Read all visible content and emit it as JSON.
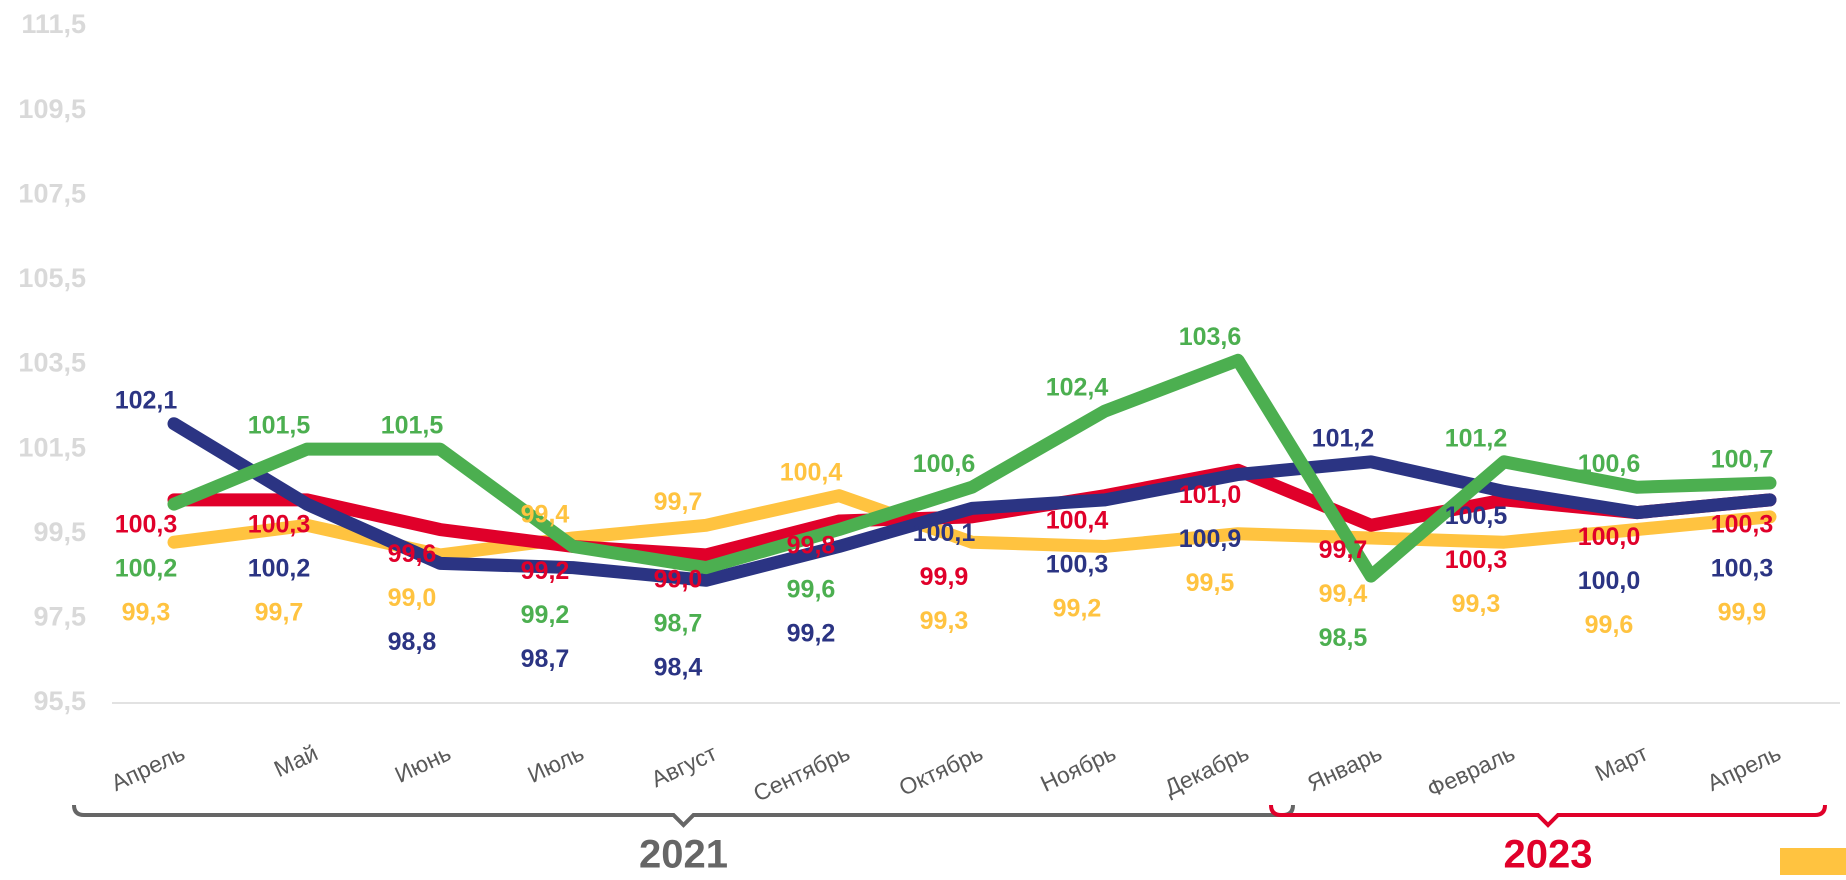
{
  "chart_data": {
    "type": "line",
    "categories": [
      "Апрель",
      "Май",
      "Июнь",
      "Июль",
      "Август",
      "Сентябрь",
      "Октябрь",
      "Ноябрь",
      "Декабрь",
      "Январь",
      "Февраль",
      "Март",
      "Апрель"
    ],
    "series": [
      {
        "color": "#ffc340",
        "values": [
          99.3,
          99.7,
          99.0,
          99.4,
          99.7,
          100.4,
          99.3,
          99.2,
          99.5,
          99.4,
          99.3,
          99.6,
          99.9
        ],
        "value_labels": [
          "99,3",
          "99,7",
          "99,0",
          "99,4",
          "99,7",
          "100,4",
          "99,3",
          "99,2",
          "99,5",
          "99,4",
          "99,3",
          "99,6",
          "99,9"
        ]
      },
      {
        "color": "#e0002a",
        "values": [
          100.3,
          100.3,
          99.6,
          99.2,
          99.0,
          99.8,
          99.9,
          100.4,
          101.0,
          99.7,
          100.3,
          100.0,
          100.3
        ],
        "value_labels": [
          "100,3",
          "100,3",
          "99,6",
          "99,2",
          "99,0",
          "99,8",
          "99,9",
          "100,4",
          "101,0",
          "99,7",
          "100,3",
          "100,0",
          "100,3"
        ]
      },
      {
        "color": "#2b3483",
        "values": [
          102.1,
          100.2,
          98.8,
          98.7,
          98.4,
          99.2,
          100.1,
          100.3,
          100.9,
          101.2,
          100.5,
          100.0,
          100.3
        ],
        "value_labels": [
          "102,1",
          "100,2",
          "98,8",
          "98,7",
          "98,4",
          "99,2",
          "100,1",
          "100,3",
          "100,9",
          "101,2",
          "100,5",
          "100,0",
          "100,3"
        ]
      },
      {
        "color": "#4caf50",
        "values": [
          100.2,
          101.5,
          101.5,
          99.2,
          98.7,
          99.6,
          100.6,
          102.4,
          103.6,
          98.5,
          101.2,
          100.6,
          100.7
        ],
        "value_labels": [
          "100,2",
          "101,5",
          "101,5",
          "99,2",
          "98,7",
          "99,6",
          "100,6",
          "102,4",
          "103,6",
          "98,5",
          "101,2",
          "100,6",
          "100,7"
        ]
      }
    ],
    "ylim": [
      95.5,
      111.5
    ],
    "yticks": [
      {
        "value": 95.5,
        "label": "95,5"
      },
      {
        "value": 97.5,
        "label": "97,5"
      },
      {
        "value": 99.5,
        "label": "99,5"
      },
      {
        "value": 101.5,
        "label": "101,5"
      },
      {
        "value": 103.5,
        "label": "103,5"
      },
      {
        "value": 105.5,
        "label": "105,5"
      },
      {
        "value": 107.5,
        "label": "107,5"
      },
      {
        "value": 109.5,
        "label": "109,5"
      },
      {
        "value": 111.5,
        "label": "111,5"
      }
    ],
    "grid": false,
    "groups": [
      {
        "label": "2021",
        "color": "#666666",
        "span": [
          0,
          8
        ]
      },
      {
        "label": "2023",
        "color": "#e0002a",
        "span": [
          9,
          12
        ]
      }
    ]
  }
}
